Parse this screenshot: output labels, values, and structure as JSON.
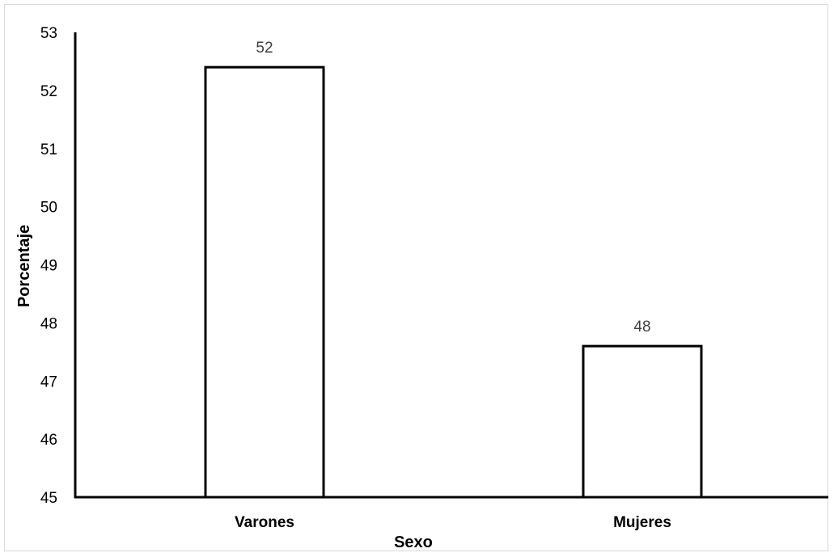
{
  "chart_data": {
    "type": "bar",
    "categories": [
      "Varones",
      "Mujeres"
    ],
    "values": [
      52.4,
      47.6
    ],
    "data_labels": [
      "52",
      "48"
    ],
    "title": "",
    "xlabel": "Sexo",
    "ylabel": "Porcentaje",
    "ylim": [
      45,
      53
    ],
    "yticks": [
      45,
      46,
      47,
      48,
      49,
      50,
      51,
      52,
      53
    ],
    "grid": false,
    "legend": "none",
    "colors": {
      "bar_fill": "#ffffff",
      "bar_stroke": "#000000",
      "axis": "#000000",
      "data_label": "#404040"
    }
  }
}
